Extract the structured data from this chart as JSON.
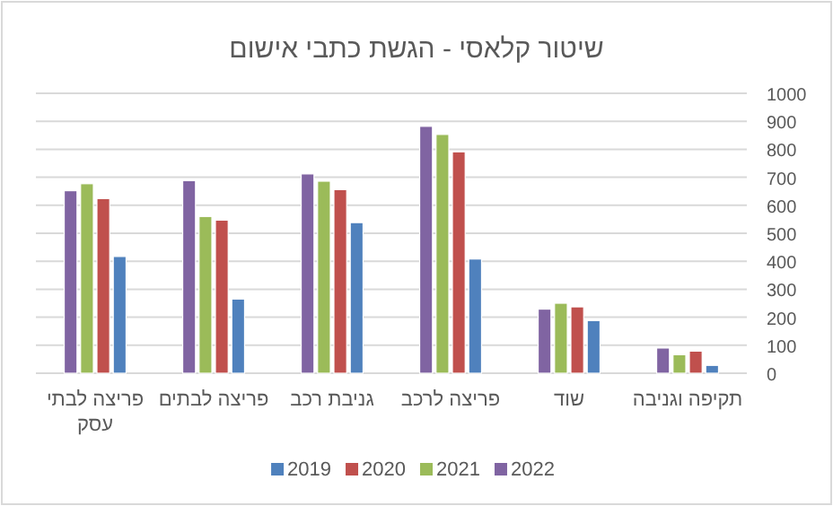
{
  "chart_data": {
    "type": "bar",
    "title": "שיטור קלאסי - הגשת כתבי אישום",
    "categories": [
      "פריצה לבתי עסק",
      "פריצה לבתים",
      "גניבת רכב",
      "פריצה לרכב",
      "שוד",
      "תקיפה וגניבה"
    ],
    "series": [
      {
        "name": "2019",
        "color": "#4f81bd",
        "values": [
          417,
          265,
          538,
          408,
          188,
          28
        ]
      },
      {
        "name": "2020",
        "color": "#c0504d",
        "values": [
          624,
          547,
          656,
          791,
          237,
          79
        ]
      },
      {
        "name": "2021",
        "color": "#9bbb59",
        "values": [
          677,
          560,
          686,
          853,
          250,
          66
        ]
      },
      {
        "name": "2022",
        "color": "#8064a2",
        "values": [
          652,
          688,
          712,
          882,
          229,
          90
        ]
      }
    ],
    "ylim": [
      0,
      1000
    ],
    "yticks": [
      0,
      100,
      200,
      300,
      400,
      500,
      600,
      700,
      800,
      900,
      1000
    ],
    "grid": "y",
    "legend": "bottom"
  }
}
